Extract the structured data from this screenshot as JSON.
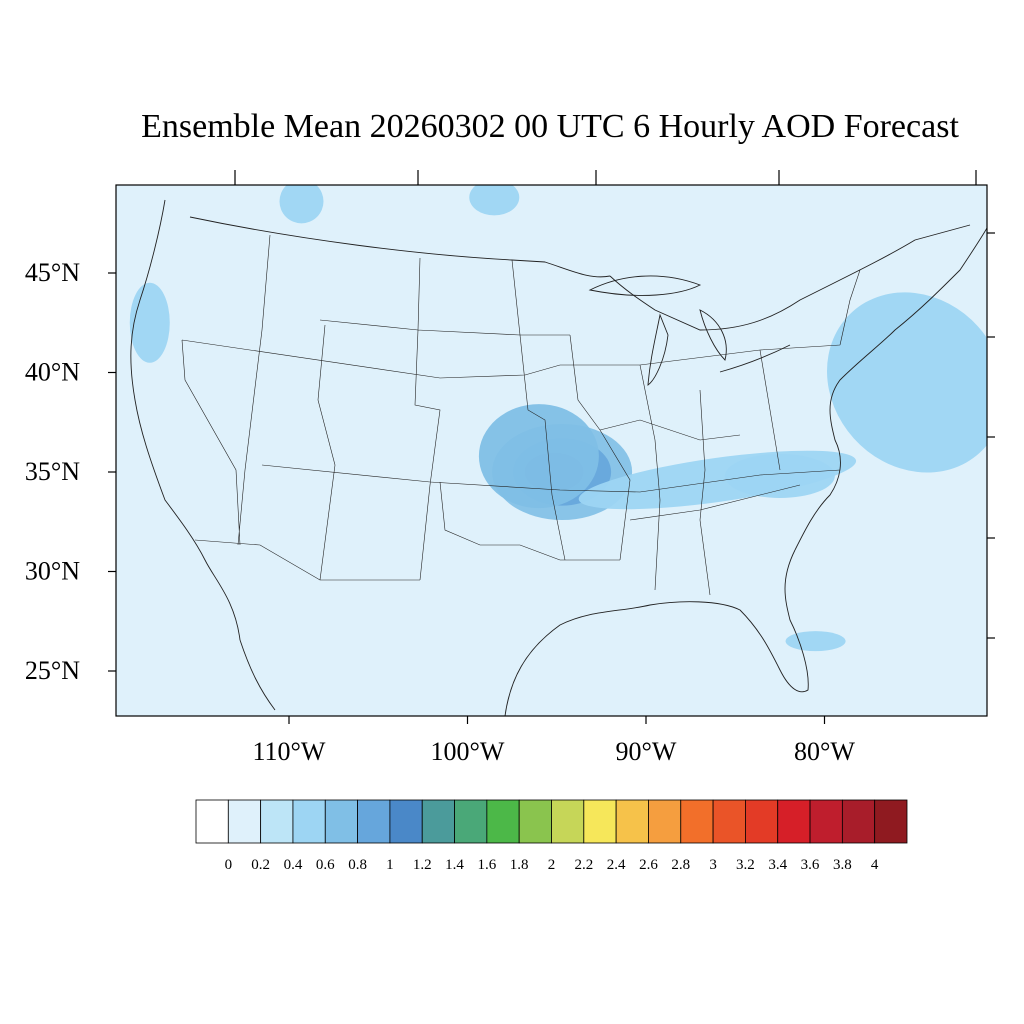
{
  "map": {
    "title": "Ensemble Mean 20260302 00 UTC 6 Hourly AOD Forecast",
    "lat_labels": [
      "45°N",
      "40°N",
      "35°N",
      "30°N",
      "25°N"
    ],
    "lon_labels": [
      "110°W",
      "100°W",
      "90°W",
      "80°W"
    ],
    "lat_ticks": [
      45,
      40,
      35,
      30,
      25
    ],
    "lon_ticks": [
      -110,
      -100,
      -90,
      -80
    ],
    "extent": {
      "lon": [
        -119,
        -70
      ],
      "lat": [
        22.3,
        49.3
      ]
    },
    "background_color": "#dff1fb",
    "plumes": [
      {
        "lon": -94.7,
        "lat": 35.0,
        "aod_level": 1.0,
        "label": ""
      },
      {
        "lon": -96.0,
        "lat": 35.8,
        "aod_level": 0.6,
        "label": ""
      },
      {
        "lon": -86.0,
        "lat": 34.6,
        "aod_level": 0.4,
        "label": ""
      },
      {
        "lon": -76.0,
        "lat": 39.5,
        "aod_level": 0.4,
        "label": ""
      },
      {
        "lon": -82.5,
        "lat": 34.8,
        "aod_level": 0.4,
        "label": ""
      },
      {
        "lon": -117.8,
        "lat": 42.5,
        "aod_level": 0.4,
        "label": ""
      },
      {
        "lon": -98.5,
        "lat": 48.8,
        "aod_level": 0.4,
        "label": ""
      },
      {
        "lon": -109.3,
        "lat": 48.6,
        "aod_level": 0.4,
        "label": ""
      },
      {
        "lon": -80.5,
        "lat": 26.5,
        "aod_level": 0.4,
        "label": ""
      }
    ]
  },
  "colorbar": {
    "levels": [
      "0",
      "0.2",
      "0.4",
      "0.6",
      "0.8",
      "1",
      "1.2",
      "1.4",
      "1.6",
      "1.8",
      "2",
      "2.2",
      "2.4",
      "2.6",
      "2.8",
      "3",
      "3.2",
      "3.4",
      "3.6",
      "3.8",
      "4"
    ],
    "colors": [
      "#ffffff",
      "#dff1fb",
      "#bde5f7",
      "#9dd5f3",
      "#80bfe6",
      "#66a6dc",
      "#4a88c8",
      "#4b9b9b",
      "#4aa878",
      "#4cb848",
      "#8ac44e",
      "#c6d658",
      "#f6e75a",
      "#f6c24a",
      "#f59e3f",
      "#f26f2a",
      "#ea5428",
      "#e33b26",
      "#d61f28",
      "#bf1e2d",
      "#a81d2a",
      "#8f1a20"
    ]
  }
}
